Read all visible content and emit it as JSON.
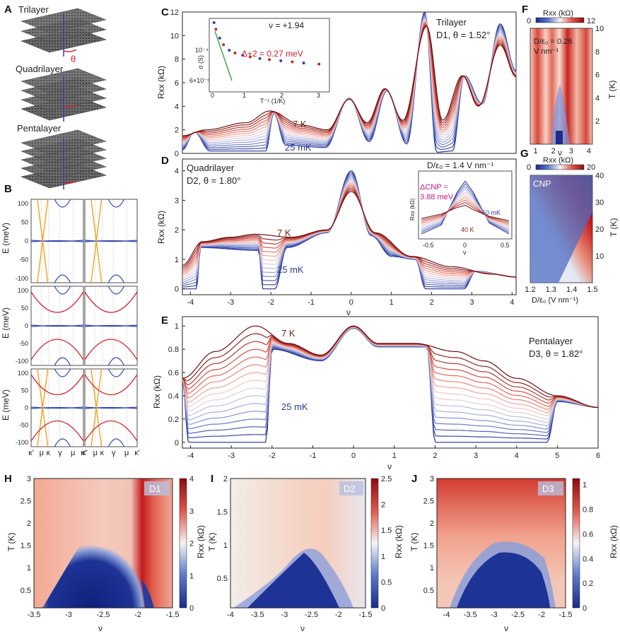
{
  "panels": {
    "A": {
      "label": "A",
      "items": [
        "Trilayer",
        "Quadrilayer",
        "Pentalayer"
      ],
      "angle_symbol": "θ"
    },
    "B": {
      "label": "B",
      "ylabel": "E (meV)",
      "yticks": [
        "100",
        "50",
        "0",
        "-50",
        "-100"
      ],
      "kpath": [
        "κ'",
        "μ",
        "κ",
        "γ",
        "μ",
        "κ'"
      ]
    },
    "C": {
      "label": "C",
      "title1": "Trilayer",
      "title2": "D1, θ = 1.52°",
      "ylabel": "Rxx (kΩ)",
      "filling": "ν = +1.94",
      "hot": "7 K",
      "cold": "25 mK",
      "inset": {
        "ylabel": "σ (S)",
        "xlabel": "T⁻¹ (1/K)",
        "gap": "Δ+2 = 0.27 meV",
        "yticks": [
          "10⁻⁴",
          "6×10⁻⁵"
        ],
        "xticks": [
          "0",
          "1",
          "2",
          "3"
        ]
      }
    },
    "D": {
      "label": "D",
      "title1": "Quadrilayer",
      "title2": "D2, θ = 1.80°",
      "ylabel": "Rxx (kΩ)",
      "xlabel": "ν",
      "hot": "7 K",
      "cold": "25 mK",
      "inset": {
        "field": "D/ε₀ = 1.4 V nm⁻¹",
        "gap1": "ΔCNP =",
        "gap2": "3.88 meV",
        "low": "50 mK",
        "high": "40 K",
        "xlabel": "ν",
        "ylabel": "Rxx (kΩ)",
        "xticks": [
          "-0.5",
          "0",
          "0.5"
        ]
      }
    },
    "E": {
      "label": "E",
      "title1": "Pentalayer",
      "title2": "D3, θ = 1.82°",
      "ylabel": "Rxx (kΩ)",
      "xlabel": "ν",
      "hot": "7 K",
      "cold": "25 mK"
    },
    "F": {
      "label": "F",
      "cbar": "Rxx (kΩ)",
      "cmin": "0",
      "cmax": "12",
      "field": "D/ε₀ = 0.26",
      "unit": "V nm⁻¹",
      "ylabel": "T (K)",
      "xlabel": "ν"
    },
    "G": {
      "label": "G",
      "cbar": "Rxx (kΩ)",
      "cmin": "0",
      "cmax": "20",
      "tag": "CNP",
      "ylabel": "T (K)",
      "xlabel": "D/ε₀ (V nm⁻¹)"
    },
    "H": {
      "label": "H",
      "tag": "D1",
      "ylabel": "T (K)",
      "xlabel": "ν",
      "cbar": "Rxx (kΩ)"
    },
    "I": {
      "label": "I",
      "tag": "D2",
      "ylabel": "T (K)",
      "xlabel": "ν",
      "cbar": "Rxx (kΩ)"
    },
    "J": {
      "label": "J",
      "tag": "D3",
      "ylabel": "T (K)",
      "xlabel": "ν",
      "cbar": "Rxx (kΩ)"
    }
  },
  "chart_data": [
    {
      "id": "C",
      "type": "line",
      "xlabel": "",
      "ylabel": "Rxx (kΩ)",
      "xlim": [
        -4.2,
        4.2
      ],
      "ylim": [
        0,
        12
      ],
      "xticks": [],
      "yticks": [
        0,
        2,
        4,
        6,
        8,
        10,
        12
      ],
      "temperatures": [
        "25 mK",
        "7 K"
      ],
      "peaks_hot": [
        [
          -4.2,
          1.5
        ],
        [
          -3.6,
          2.0
        ],
        [
          -2.6,
          2.6
        ],
        [
          -2.0,
          3.6
        ],
        [
          -1.2,
          2.4
        ],
        [
          -0.55,
          2.0
        ],
        [
          0.0,
          4.6
        ],
        [
          0.45,
          2.6
        ],
        [
          0.9,
          5.5
        ],
        [
          1.35,
          2.8
        ],
        [
          1.95,
          10.8
        ],
        [
          2.35,
          2.8
        ],
        [
          2.85,
          6.6
        ],
        [
          3.25,
          4.0
        ],
        [
          3.8,
          9.2
        ],
        [
          4.2,
          6.5
        ]
      ],
      "peaks_cold": [
        [
          -4.2,
          0.3
        ],
        [
          -3.9,
          1.8
        ],
        [
          -3.5,
          0.2
        ],
        [
          -2.1,
          0.2
        ],
        [
          -1.9,
          3.4
        ],
        [
          -1.6,
          0.7
        ],
        [
          -0.6,
          0.5
        ],
        [
          0.0,
          4.7
        ],
        [
          0.5,
          1.0
        ],
        [
          0.95,
          5.3
        ],
        [
          1.45,
          0.8
        ],
        [
          1.9,
          12.0
        ],
        [
          2.2,
          0.1
        ],
        [
          2.6,
          0.2
        ],
        [
          2.9,
          6.6
        ],
        [
          3.35,
          4.2
        ],
        [
          3.8,
          11.0
        ],
        [
          4.2,
          7.0
        ]
      ],
      "inset": {
        "type": "scatter",
        "x": [
          0.05,
          0.1,
          0.2,
          0.3,
          0.45,
          0.6,
          0.8,
          1.0,
          1.25,
          1.5,
          1.8,
          2.1,
          2.4,
          2.8
        ],
        "y_rel": [
          1.0,
          0.88,
          0.72,
          0.6,
          0.5,
          0.45,
          0.41,
          0.38,
          0.35,
          0.33,
          0.31,
          0.29,
          0.27,
          0.25
        ]
      }
    },
    {
      "id": "D",
      "type": "line",
      "xlabel": "ν",
      "ylabel": "Rxx (kΩ)",
      "xlim": [
        -4.2,
        4.1
      ],
      "ylim": [
        -0.2,
        4.4
      ],
      "xticks": [
        -4,
        -3,
        -2,
        -1,
        0,
        1,
        2,
        3,
        4
      ],
      "yticks": [
        0,
        1,
        2,
        3,
        4
      ],
      "temperatures": [
        "25 mK",
        "7 K"
      ],
      "peaks_hot": [
        [
          -4.2,
          0.8
        ],
        [
          -3.7,
          1.6
        ],
        [
          -3.0,
          1.75
        ],
        [
          -2.4,
          1.85
        ],
        [
          -1.5,
          1.75
        ],
        [
          -0.6,
          2.0
        ],
        [
          0.0,
          3.3
        ],
        [
          0.6,
          1.9
        ],
        [
          1.5,
          1.1
        ],
        [
          2.5,
          0.75
        ],
        [
          3.5,
          0.5
        ],
        [
          4.1,
          0.4
        ]
      ],
      "peaks_cold": [
        [
          -4.2,
          0.0
        ],
        [
          -3.85,
          0.0
        ],
        [
          -3.75,
          1.4
        ],
        [
          -2.3,
          1.3
        ],
        [
          -2.2,
          0.0
        ],
        [
          -1.9,
          0.0
        ],
        [
          -1.6,
          1.4
        ],
        [
          -0.6,
          1.9
        ],
        [
          0.0,
          4.0
        ],
        [
          0.5,
          1.8
        ],
        [
          1.0,
          1.1
        ],
        [
          1.6,
          1.0
        ],
        [
          1.85,
          0.0
        ],
        [
          2.8,
          0.0
        ],
        [
          3.1,
          0.6
        ],
        [
          4.1,
          0.4
        ]
      ],
      "inset": {
        "type": "line",
        "x": [
          -0.55,
          -0.3,
          -0.1,
          0.0,
          0.1,
          0.3,
          0.55
        ],
        "cold": [
          0.1,
          0.5,
          2.0,
          2.5,
          2.0,
          0.6,
          0.1
        ],
        "hot": [
          0.8,
          1.0,
          1.3,
          1.4,
          1.2,
          0.9,
          0.7
        ]
      }
    },
    {
      "id": "E",
      "type": "line",
      "xlabel": "ν",
      "ylabel": "Rxx (kΩ)",
      "xlim": [
        -4.2,
        6.0
      ],
      "ylim": [
        -0.05,
        1.08
      ],
      "xticks": [
        -4,
        -3,
        -2,
        -1,
        0,
        1,
        2,
        3,
        4,
        5,
        6
      ],
      "yticks": [
        0,
        0.2,
        0.4,
        0.6,
        0.8,
        1
      ],
      "temperatures": [
        "25 mK",
        "7 K"
      ],
      "peaks_hot": [
        [
          -4.2,
          0.55
        ],
        [
          -3.4,
          0.78
        ],
        [
          -2.4,
          1.0
        ],
        [
          -1.6,
          0.85
        ],
        [
          -0.8,
          0.75
        ],
        [
          0.0,
          1.0
        ],
        [
          0.6,
          0.85
        ],
        [
          1.5,
          0.85
        ],
        [
          2.5,
          0.78
        ],
        [
          3.2,
          0.7
        ],
        [
          4.0,
          0.55
        ],
        [
          5.0,
          0.4
        ],
        [
          6.0,
          0.3
        ]
      ],
      "peaks_cold": [
        [
          -4.2,
          0.55
        ],
        [
          -4.05,
          0.0
        ],
        [
          -2.15,
          0.0
        ],
        [
          -2.0,
          0.8
        ],
        [
          -0.8,
          0.7
        ],
        [
          0.0,
          0.98
        ],
        [
          0.6,
          0.82
        ],
        [
          1.8,
          0.82
        ],
        [
          2.0,
          0.0
        ],
        [
          4.75,
          0.0
        ],
        [
          5.0,
          0.35
        ],
        [
          6.0,
          0.3
        ]
      ]
    },
    {
      "id": "F",
      "type": "heatmap",
      "xlabel": "ν",
      "ylabel": "T (K)",
      "xlim": [
        0.7,
        4.2
      ],
      "ylim": [
        0,
        10
      ],
      "xticks": [
        1,
        2,
        3,
        4
      ],
      "yticks": [
        2,
        4,
        6,
        8,
        10
      ],
      "clim": [
        0,
        12
      ]
    },
    {
      "id": "G",
      "type": "heatmap",
      "xlabel": "D/ε₀ (V nm⁻¹)",
      "ylabel": "T (K)",
      "xlim": [
        1.2,
        1.5
      ],
      "ylim": [
        0,
        40
      ],
      "xticks": [
        1.2,
        1.3,
        1.4,
        1.5
      ],
      "yticks": [
        10,
        20,
        30,
        40
      ],
      "clim": [
        0,
        20
      ]
    },
    {
      "id": "H",
      "type": "heatmap",
      "xlabel": "ν",
      "ylabel": "T (K)",
      "xlim": [
        -3.5,
        -1.5
      ],
      "ylim": [
        0.1,
        3
      ],
      "xticks": [
        -3.5,
        -3,
        -2.5,
        -2,
        -1.5
      ],
      "yticks": [
        0.5,
        1,
        1.5,
        2,
        2.5,
        3
      ],
      "clim": [
        0,
        4
      ],
      "cticks": [
        0,
        1,
        2,
        3,
        4
      ]
    },
    {
      "id": "I",
      "type": "heatmap",
      "xlabel": "ν",
      "ylabel": "T (K)",
      "xlim": [
        -4,
        -1.5
      ],
      "ylim": [
        0.05,
        2
      ],
      "xticks": [
        -4,
        -3.5,
        -3,
        -2.5,
        -2,
        -1.5
      ],
      "yticks": [
        0.5,
        1,
        1.5,
        2
      ],
      "clim": [
        0,
        2.5
      ],
      "cticks": [
        0,
        0.5,
        1,
        1.5,
        2,
        2.5
      ]
    },
    {
      "id": "J",
      "type": "heatmap",
      "xlabel": "ν",
      "ylabel": "T (K)",
      "xlim": [
        -4.2,
        -1.5
      ],
      "ylim": [
        0.1,
        3
      ],
      "xticks": [
        -4,
        -3.5,
        -3,
        -2.5,
        -2,
        -1.5
      ],
      "yticks": [
        0.5,
        1,
        1.5,
        2,
        2.5,
        3
      ],
      "clim": [
        0,
        1.05
      ],
      "cticks": [
        0,
        0.2,
        0.4,
        0.6,
        0.8,
        1
      ]
    }
  ]
}
